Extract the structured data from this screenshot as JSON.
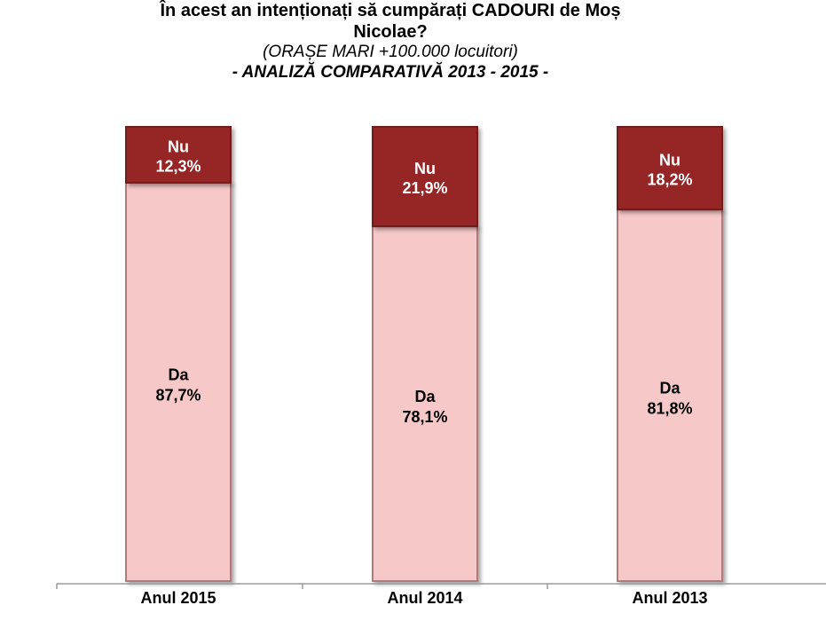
{
  "title": {
    "line1": "În acest an intenționați să cumpărați CADOURI  de Moș",
    "line2": "Nicolae?",
    "subtitle": "(ORAȘE MARI +100.000 locuitori)",
    "analysis": "- ANALIZĂ COMPARATIVĂ 2013 - 2015 -"
  },
  "chart_data": {
    "type": "bar",
    "stacked": true,
    "categories": [
      "Anul 2015",
      "Anul 2014",
      "Anul 2013"
    ],
    "series": [
      {
        "name": "Da",
        "values": [
          87.7,
          78.1,
          81.8
        ],
        "value_labels": [
          "87,7%",
          "78,1%",
          "81,8%"
        ],
        "color": "#f6c8c8"
      },
      {
        "name": "Nu",
        "values": [
          12.3,
          21.9,
          18.2
        ],
        "value_labels": [
          "12,3%",
          "21,9%",
          "18,2%"
        ],
        "color": "#962828"
      }
    ],
    "ylim": [
      0,
      100
    ],
    "grid": false,
    "legend": "none"
  },
  "colors": {
    "da_fill": "#f6c8c8",
    "da_stroke": "#b07a7a",
    "nu_fill": "#962828",
    "nu_stroke": "#6e1c1c",
    "da_text": "#000000",
    "nu_text": "#ffffff",
    "axis": "#9a9a9a"
  }
}
